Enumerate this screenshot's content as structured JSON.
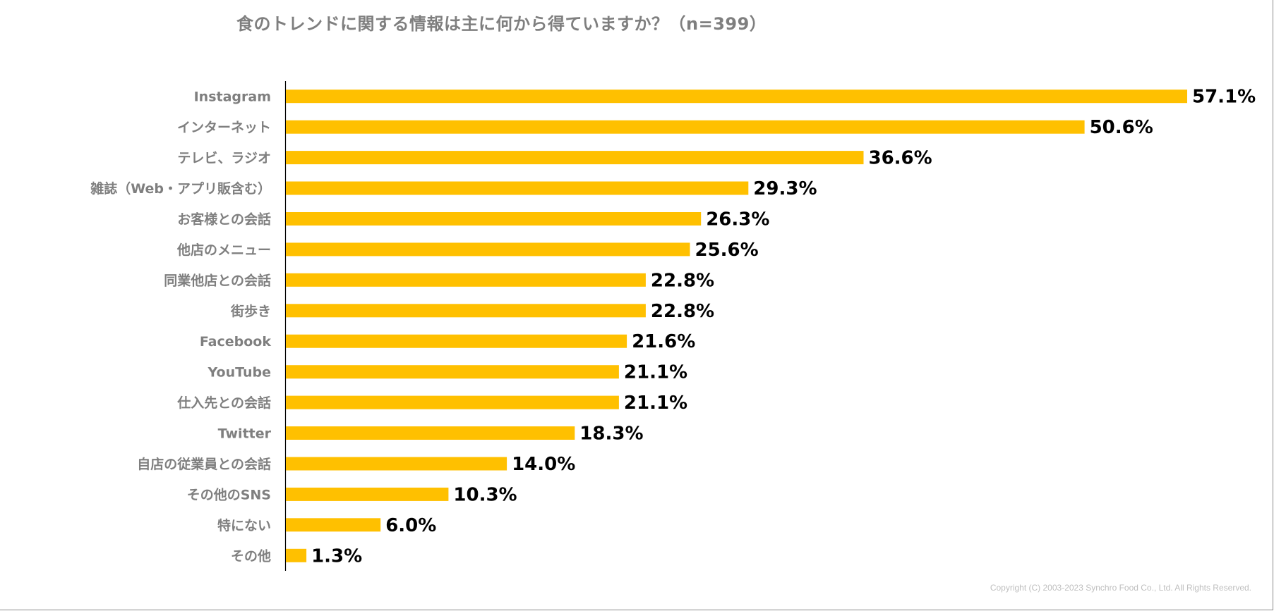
{
  "chart_data": {
    "type": "bar",
    "orientation": "horizontal",
    "title": "食のトレンドに関する情報は主に何から得ていますか？（n=399）",
    "categories": [
      "Instagram",
      "インターネット",
      "テレビ、ラジオ",
      "雑誌（Web・アプリ販含む）",
      "お客様との会話",
      "他店のメニュー",
      "同業他店との会話",
      "街歩き",
      "Facebook",
      "YouTube",
      "仕入先との会話",
      "Twitter",
      "自店の従業員との会話",
      "その他のSNS",
      "特にない",
      "その他"
    ],
    "values": [
      57.1,
      50.6,
      36.6,
      29.3,
      26.3,
      25.6,
      22.8,
      22.8,
      21.6,
      21.1,
      21.1,
      18.3,
      14.0,
      10.3,
      6.0,
      1.3
    ],
    "value_labels": [
      "57.1%",
      "50.6%",
      "36.6%",
      "29.3%",
      "26.3%",
      "25.6%",
      "22.8%",
      "22.8%",
      "21.6%",
      "21.1%",
      "21.1%",
      "18.3%",
      "14.0%",
      "10.3%",
      "6.0%",
      "1.3%"
    ],
    "unit": "%",
    "xlim": [
      0,
      60
    ],
    "grid": false,
    "legend": "none",
    "bar_color": "#FFC000",
    "axis_color": "#000000",
    "label_color": "#7F7F7F",
    "value_label_color": "#000000"
  },
  "footer": {
    "copyright": "Copyright (C) 2003-2023  Synchro Food Co., Ltd. All Rights Reserved."
  }
}
